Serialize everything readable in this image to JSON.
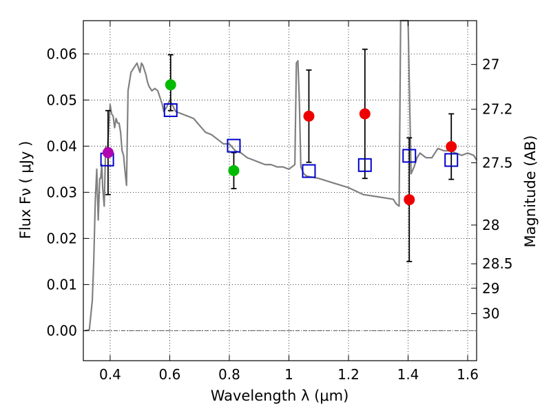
{
  "chart_data": {
    "type": "scatter",
    "xlabel": "Wavelength  λ (μm)",
    "ylabel": "Flux  Fν  ( μJy )",
    "ylabel_right": "Magnitude (AB)",
    "xlim": [
      0.31,
      1.63
    ],
    "ylim": [
      -0.0065,
      0.0672
    ],
    "x_ticks": [
      0.4,
      0.6,
      0.8,
      1.0,
      1.2,
      1.4,
      1.6
    ],
    "x_tick_labels": [
      "0.4",
      "0.6",
      "0.8",
      "1",
      "1.2",
      "1.4",
      "1.6"
    ],
    "y_ticks": [
      0.0,
      0.01,
      0.02,
      0.03,
      0.04,
      0.05,
      0.06
    ],
    "y_tick_labels": [
      "0.00",
      "0.01",
      "0.02",
      "0.03",
      "0.04",
      "0.05",
      "0.06"
    ],
    "right_ticks": [
      {
        "label": "27",
        "flux": 0.0577
      },
      {
        "label": "27.2",
        "flux": 0.048
      },
      {
        "label": "27.5",
        "flux": 0.0364
      },
      {
        "label": "28",
        "flux": 0.0229
      },
      {
        "label": "28.5",
        "flux": 0.0145
      },
      {
        "label": "29",
        "flux": 0.0092
      },
      {
        "label": "30",
        "flux": 0.0037
      }
    ],
    "grid": true,
    "series": [
      {
        "name": "model-sed",
        "kind": "line",
        "color": "#808080",
        "x": [
          0.315,
          0.33,
          0.34,
          0.345,
          0.35,
          0.355,
          0.36,
          0.365,
          0.368,
          0.372,
          0.375,
          0.38,
          0.385,
          0.39,
          0.395,
          0.4,
          0.405,
          0.41,
          0.415,
          0.42,
          0.425,
          0.43,
          0.435,
          0.44,
          0.445,
          0.45,
          0.455,
          0.46,
          0.47,
          0.48,
          0.49,
          0.495,
          0.5,
          0.505,
          0.51,
          0.515,
          0.52,
          0.525,
          0.53,
          0.54,
          0.55,
          0.56,
          0.57,
          0.575,
          0.58,
          0.59,
          0.6,
          0.62,
          0.64,
          0.66,
          0.68,
          0.7,
          0.72,
          0.74,
          0.76,
          0.78,
          0.8,
          0.82,
          0.84,
          0.86,
          0.88,
          0.9,
          0.92,
          0.94,
          0.96,
          0.98,
          1.0,
          1.02,
          1.025,
          1.03,
          1.035,
          1.04,
          1.05,
          1.06,
          1.1,
          1.15,
          1.2,
          1.25,
          1.3,
          1.35,
          1.36,
          1.37,
          1.375,
          1.38,
          1.385,
          1.39,
          1.395,
          1.4,
          1.41,
          1.42,
          1.43,
          1.44,
          1.45,
          1.46,
          1.48,
          1.5,
          1.52,
          1.54,
          1.56,
          1.58,
          1.6,
          1.62,
          1.63
        ],
        "y": [
          0.0,
          0.0002,
          0.0065,
          0.015,
          0.028,
          0.035,
          0.024,
          0.033,
          0.033,
          0.036,
          0.031,
          0.027,
          0.04,
          0.038,
          0.044,
          0.049,
          0.047,
          0.0465,
          0.044,
          0.046,
          0.045,
          0.045,
          0.043,
          0.039,
          0.038,
          0.0345,
          0.0315,
          0.052,
          0.056,
          0.057,
          0.058,
          0.057,
          0.056,
          0.058,
          0.0575,
          0.0565,
          0.0555,
          0.054,
          0.053,
          0.052,
          0.0525,
          0.052,
          0.05,
          0.049,
          0.0475,
          0.0485,
          0.05,
          0.0475,
          0.047,
          0.0465,
          0.046,
          0.0445,
          0.043,
          0.0425,
          0.0415,
          0.0405,
          0.0405,
          0.039,
          0.0385,
          0.0375,
          0.037,
          0.0365,
          0.036,
          0.036,
          0.0355,
          0.0355,
          0.035,
          0.036,
          0.058,
          0.0585,
          0.05,
          0.0355,
          0.034,
          0.0335,
          0.033,
          0.032,
          0.031,
          0.0295,
          0.029,
          0.0285,
          0.0275,
          0.027,
          0.068,
          0.068,
          0.068,
          0.068,
          0.068,
          0.068,
          0.034,
          0.0355,
          0.0375,
          0.0385,
          0.038,
          0.0375,
          0.0375,
          0.0395,
          0.039,
          0.039,
          0.0385,
          0.038,
          0.0385,
          0.038,
          0.037
        ]
      },
      {
        "name": "model-photometry",
        "kind": "open-square",
        "color": "#0000cc",
        "x": [
          0.39,
          0.603,
          0.815,
          1.067,
          1.255,
          1.404,
          1.545
        ],
        "y": [
          0.0371,
          0.0478,
          0.0401,
          0.0346,
          0.0359,
          0.0379,
          0.037
        ]
      },
      {
        "name": "observed-purple",
        "kind": "errorbar",
        "color": "#b000b0",
        "x": [
          0.393
        ],
        "y": [
          0.0386
        ],
        "yerr_low": [
          0.0091
        ],
        "yerr_high": [
          0.0091
        ]
      },
      {
        "name": "observed-green",
        "kind": "errorbar",
        "color": "#00bb00",
        "x": [
          0.603,
          0.815
        ],
        "y": [
          0.0533,
          0.0347
        ],
        "yerr_low": [
          0.0056,
          0.0039
        ],
        "yerr_high": [
          0.0065,
          0.0039
        ]
      },
      {
        "name": "observed-red",
        "kind": "errorbar",
        "color": "#ee0000",
        "x": [
          1.067,
          1.255,
          1.404,
          1.545
        ],
        "y": [
          0.0465,
          0.047,
          0.0284,
          0.0399
        ],
        "yerr_low": [
          0.01,
          0.014,
          0.0134,
          0.0071
        ],
        "yerr_high": [
          0.01,
          0.014,
          0.0134,
          0.0071
        ]
      }
    ]
  }
}
